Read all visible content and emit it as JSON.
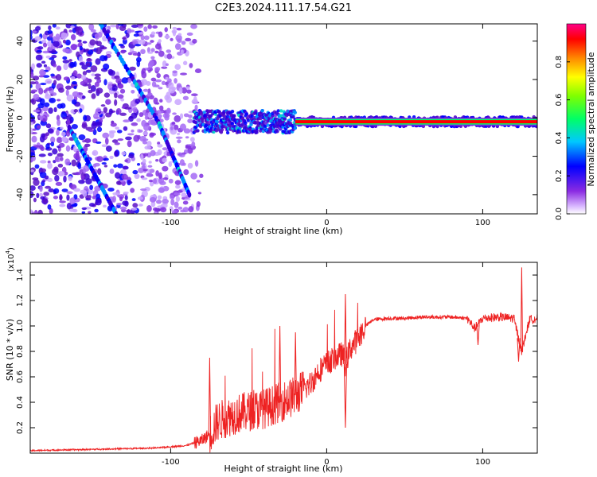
{
  "title": "C2E3.2024.111.17.54.G21",
  "chart_data": [
    {
      "type": "heatmap",
      "xlabel": "Height of straight line (km)",
      "ylabel": "Frequency (Hz)",
      "xlim": [
        -190,
        135
      ],
      "ylim": [
        -50,
        49
      ],
      "x_ticks": [
        -100,
        0,
        100
      ],
      "x_tick_labels": [
        "-100",
        "0",
        "100"
      ],
      "y_ticks": [
        -40,
        -20,
        0,
        20,
        40
      ],
      "y_tick_labels": [
        "-40",
        "-20",
        "0",
        "20",
        "40"
      ],
      "colorbar": {
        "label": "Normalized spectral amplitude",
        "range": [
          0,
          1
        ],
        "ticks": [
          0,
          0.2,
          0.4,
          0.6,
          0.8
        ],
        "tick_labels": [
          "0.0",
          "0.2",
          "0.4",
          "0.6",
          "0.8"
        ]
      },
      "features": {
        "diagonal_trace_1": [
          [
            -165,
            -5
          ],
          [
            -135,
            -50
          ]
        ],
        "diagonal_trace_2": [
          [
            -145,
            49
          ],
          [
            -108,
            -2
          ],
          [
            -88,
            -40
          ]
        ],
        "carrier_band": {
          "freq_hz": -2,
          "x_start": -85,
          "x_end": 135,
          "strong_from_km": -20
        }
      },
      "grid": false
    },
    {
      "type": "line",
      "xlabel": "Height of straight line (km)",
      "ylabel": "SNR (10 * v/v)",
      "y_scale_label": "(x10",
      "y_scale_exp": "4",
      "y_scale_tail": ")",
      "xlim": [
        -190,
        135
      ],
      "ylim": [
        0,
        1.5
      ],
      "x_ticks": [
        -100,
        0,
        100
      ],
      "x_tick_labels": [
        "-100",
        "0",
        "100"
      ],
      "y_ticks": [
        0.2,
        0.4,
        0.6,
        0.8,
        1.0,
        1.2,
        1.4
      ],
      "y_tick_labels": [
        "0.2",
        "0.4",
        "0.6",
        "0.8",
        "1.0",
        "1.2",
        "1.4"
      ],
      "series": [
        {
          "color": "#ee2222",
          "x": [
            -190,
            -150,
            -110,
            -90,
            -80,
            -75,
            -70,
            -60,
            -50,
            -40,
            -30,
            -20,
            -10,
            -5,
            0,
            5,
            10,
            12,
            15,
            20,
            25,
            30,
            40,
            50,
            60,
            70,
            80,
            90,
            95,
            100,
            110,
            120,
            125,
            130,
            135
          ],
          "y": [
            0.02,
            0.03,
            0.04,
            0.06,
            0.1,
            0.15,
            0.25,
            0.3,
            0.33,
            0.35,
            0.4,
            0.45,
            0.55,
            0.65,
            0.7,
            0.75,
            0.78,
            0.7,
            0.82,
            0.9,
            1.0,
            1.05,
            1.06,
            1.06,
            1.07,
            1.07,
            1.07,
            1.06,
            0.98,
            1.06,
            1.07,
            1.06,
            0.8,
            1.05,
            1.06
          ]
        }
      ],
      "annotations": {
        "spike_peaks": [
          [
            -75,
            0.75
          ],
          [
            -30,
            1.0
          ],
          [
            -20,
            0.95
          ],
          [
            12,
            1.25
          ],
          [
            125,
            1.46
          ]
        ],
        "spike_dips": [
          [
            12,
            0.2
          ],
          [
            97,
            0.85
          ],
          [
            123,
            0.72
          ]
        ]
      },
      "grid": false
    }
  ]
}
